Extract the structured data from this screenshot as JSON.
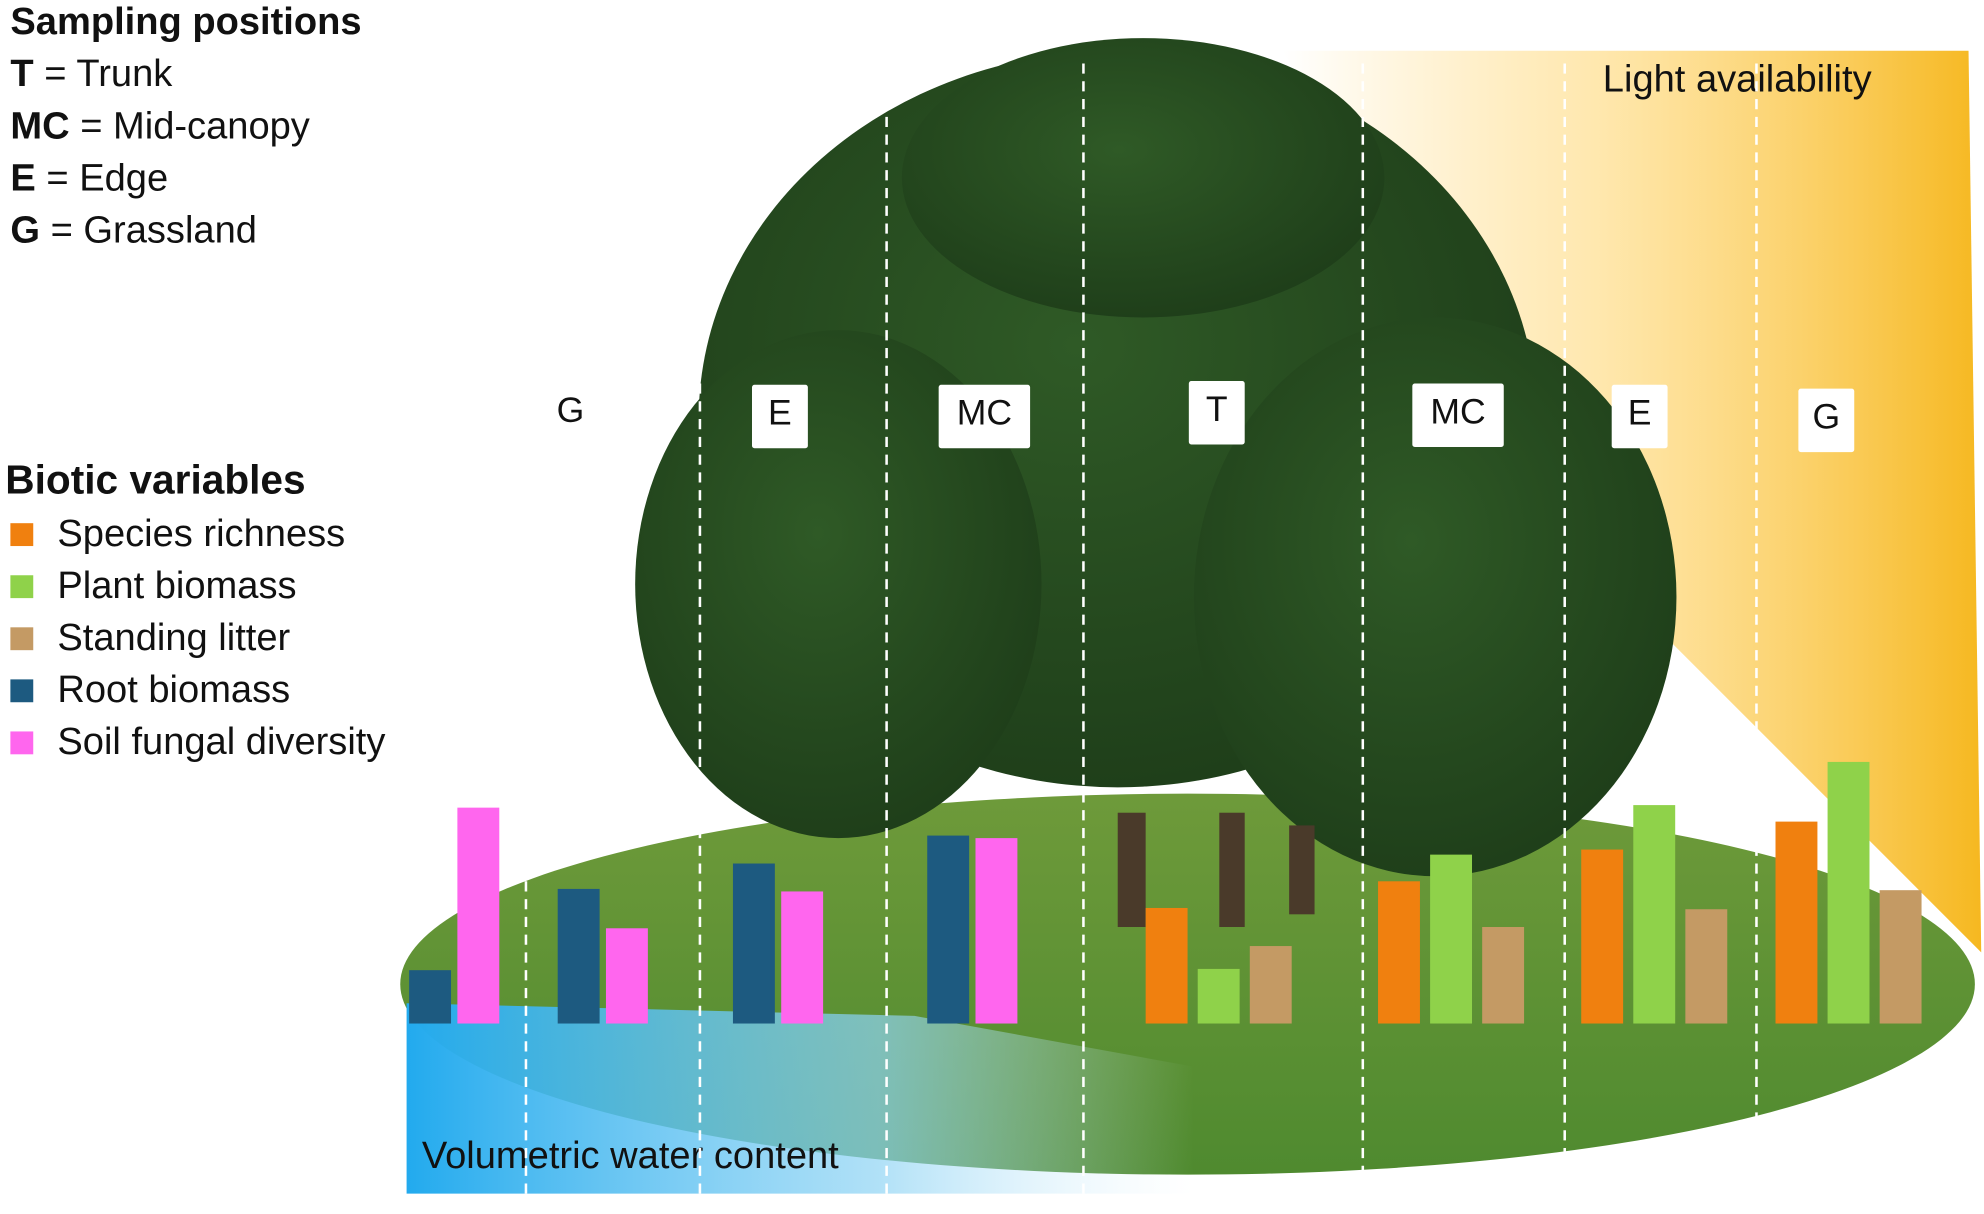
{
  "sampling_legend": {
    "title": "Sampling positions",
    "items": [
      {
        "abbr": "T",
        "definition": "= Trunk"
      },
      {
        "abbr": "MC",
        "definition": "= Mid-canopy"
      },
      {
        "abbr": "E",
        "definition": "= Edge"
      },
      {
        "abbr": "G",
        "definition": "= Grassland"
      }
    ]
  },
  "positions": [
    "G",
    "E",
    "MC",
    "T",
    "MC",
    "E",
    "G"
  ],
  "gradients": {
    "light": "Light availability",
    "water": "Volumetric water content"
  },
  "biotic": {
    "title": "Biotic variables",
    "series": [
      {
        "name": "Species richness",
        "color": "#f0800f",
        "values": [
          null,
          null,
          null,
          null,
          91,
          112,
          137,
          159
        ]
      },
      {
        "name": "Plant biomass",
        "color": "#8fd24a",
        "values": [
          null,
          null,
          null,
          null,
          43,
          133,
          172,
          206
        ]
      },
      {
        "name": "Standing litter",
        "color": "#c49a64",
        "values": [
          null,
          null,
          null,
          null,
          61,
          76,
          90,
          105
        ]
      },
      {
        "name": "Root biomass",
        "color": "#1d5a80",
        "values": [
          42,
          106,
          126,
          148,
          null,
          null,
          null,
          null
        ]
      },
      {
        "name": "Soil fungal diversity",
        "color": "#ff66ee",
        "values": [
          170,
          75,
          104,
          146,
          null,
          null,
          null,
          null
        ]
      }
    ]
  }
}
